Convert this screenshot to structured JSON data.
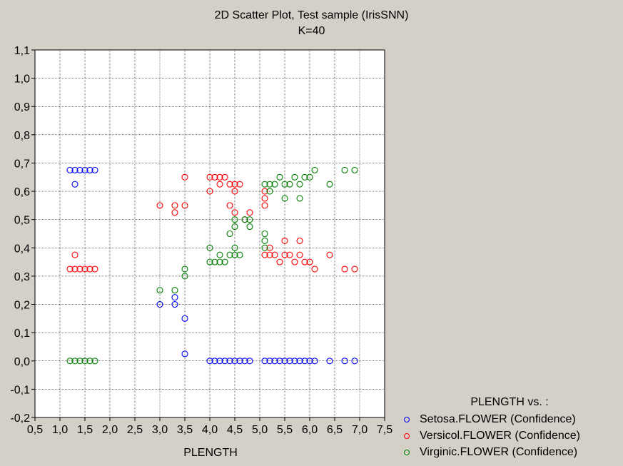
{
  "chart_data": {
    "type": "scatter",
    "title": "2D Scatter Plot, Test sample (IrisSNN)",
    "subtitle": "K=40",
    "xlabel": "PLENGTH",
    "ylabel": "",
    "xlim": [
      0.5,
      7.5
    ],
    "ylim": [
      -0.2,
      1.1
    ],
    "grid": true,
    "x_ticks": [
      "0,5",
      "1,0",
      "1,5",
      "2,0",
      "2,5",
      "3,0",
      "3,5",
      "4,0",
      "4,5",
      "5,0",
      "5,5",
      "6,0",
      "6,5",
      "7,0",
      "7,5"
    ],
    "y_ticks": [
      "-0,2",
      "-0,1",
      "0,0",
      "0,1",
      "0,2",
      "0,3",
      "0,4",
      "0,5",
      "0,6",
      "0,7",
      "0,8",
      "0,9",
      "1,0",
      "1,1"
    ],
    "legend_title": "PLENGTH  vs. :",
    "legend_position": "bottom-right, outside plot",
    "series": [
      {
        "name": "Setosa.FLOWER (Confidence)",
        "color": "#0000ff",
        "points": [
          [
            1.2,
            0.675
          ],
          [
            1.3,
            0.675
          ],
          [
            1.4,
            0.675
          ],
          [
            1.5,
            0.675
          ],
          [
            1.6,
            0.675
          ],
          [
            1.7,
            0.675
          ],
          [
            1.3,
            0.625
          ],
          [
            3.0,
            0.2
          ],
          [
            3.3,
            0.225
          ],
          [
            3.3,
            0.2
          ],
          [
            3.5,
            0.15
          ],
          [
            3.5,
            0.025
          ],
          [
            4.0,
            0
          ],
          [
            4.1,
            0
          ],
          [
            4.2,
            0
          ],
          [
            4.3,
            0
          ],
          [
            4.4,
            0
          ],
          [
            4.5,
            0
          ],
          [
            4.6,
            0
          ],
          [
            4.7,
            0
          ],
          [
            4.8,
            0
          ],
          [
            5.1,
            0
          ],
          [
            5.2,
            0
          ],
          [
            5.3,
            0
          ],
          [
            5.4,
            0
          ],
          [
            5.5,
            0
          ],
          [
            5.6,
            0
          ],
          [
            5.7,
            0
          ],
          [
            5.8,
            0
          ],
          [
            5.9,
            0
          ],
          [
            6.0,
            0
          ],
          [
            6.1,
            0
          ],
          [
            6.4,
            0
          ],
          [
            6.7,
            0
          ],
          [
            6.9,
            0
          ]
        ]
      },
      {
        "name": "Versicol.FLOWER (Confidence)",
        "color": "#ff0000",
        "points": [
          [
            1.2,
            0.325
          ],
          [
            1.3,
            0.325
          ],
          [
            1.4,
            0.325
          ],
          [
            1.5,
            0.325
          ],
          [
            1.6,
            0.325
          ],
          [
            1.7,
            0.325
          ],
          [
            1.3,
            0.375
          ],
          [
            3.0,
            0.55
          ],
          [
            3.3,
            0.55
          ],
          [
            3.3,
            0.525
          ],
          [
            3.5,
            0.55
          ],
          [
            3.5,
            0.65
          ],
          [
            4.0,
            0.65
          ],
          [
            4.1,
            0.65
          ],
          [
            4.2,
            0.65
          ],
          [
            4.3,
            0.65
          ],
          [
            4.0,
            0.6
          ],
          [
            4.2,
            0.625
          ],
          [
            4.4,
            0.625
          ],
          [
            4.5,
            0.625
          ],
          [
            4.6,
            0.625
          ],
          [
            4.5,
            0.6
          ],
          [
            4.4,
            0.55
          ],
          [
            4.5,
            0.525
          ],
          [
            4.7,
            0.5
          ],
          [
            4.8,
            0.525
          ],
          [
            5.1,
            0.6
          ],
          [
            5.1,
            0.575
          ],
          [
            5.1,
            0.55
          ],
          [
            5.1,
            0.375
          ],
          [
            5.2,
            0.4
          ],
          [
            5.2,
            0.375
          ],
          [
            5.3,
            0.375
          ],
          [
            5.4,
            0.35
          ],
          [
            5.5,
            0.425
          ],
          [
            5.5,
            0.375
          ],
          [
            5.6,
            0.375
          ],
          [
            5.7,
            0.35
          ],
          [
            5.8,
            0.425
          ],
          [
            5.8,
            0.375
          ],
          [
            5.9,
            0.35
          ],
          [
            6.0,
            0.35
          ],
          [
            6.1,
            0.325
          ],
          [
            6.4,
            0.375
          ],
          [
            6.7,
            0.325
          ],
          [
            6.9,
            0.325
          ]
        ]
      },
      {
        "name": "Virginic.FLOWER (Confidence)",
        "color": "#008000",
        "points": [
          [
            1.2,
            0
          ],
          [
            1.3,
            0
          ],
          [
            1.4,
            0
          ],
          [
            1.5,
            0
          ],
          [
            1.6,
            0
          ],
          [
            1.7,
            0
          ],
          [
            3.0,
            0.25
          ],
          [
            3.3,
            0.25
          ],
          [
            3.5,
            0.325
          ],
          [
            3.5,
            0.3
          ],
          [
            4.0,
            0.4
          ],
          [
            4.0,
            0.35
          ],
          [
            4.1,
            0.35
          ],
          [
            4.2,
            0.35
          ],
          [
            4.3,
            0.35
          ],
          [
            4.2,
            0.375
          ],
          [
            4.4,
            0.375
          ],
          [
            4.5,
            0.375
          ],
          [
            4.6,
            0.375
          ],
          [
            4.4,
            0.45
          ],
          [
            4.5,
            0.4
          ],
          [
            4.5,
            0.5
          ],
          [
            4.5,
            0.475
          ],
          [
            4.7,
            0.5
          ],
          [
            4.8,
            0.5
          ],
          [
            4.8,
            0.475
          ],
          [
            5.1,
            0.625
          ],
          [
            5.1,
            0.45
          ],
          [
            5.1,
            0.425
          ],
          [
            5.1,
            0.4
          ],
          [
            5.2,
            0.625
          ],
          [
            5.2,
            0.6
          ],
          [
            5.3,
            0.625
          ],
          [
            5.4,
            0.65
          ],
          [
            5.5,
            0.575
          ],
          [
            5.5,
            0.625
          ],
          [
            5.6,
            0.625
          ],
          [
            5.7,
            0.65
          ],
          [
            5.8,
            0.575
          ],
          [
            5.8,
            0.625
          ],
          [
            5.9,
            0.65
          ],
          [
            6.0,
            0.65
          ],
          [
            6.1,
            0.675
          ],
          [
            6.4,
            0.625
          ],
          [
            6.7,
            0.675
          ],
          [
            6.9,
            0.675
          ]
        ]
      }
    ]
  }
}
